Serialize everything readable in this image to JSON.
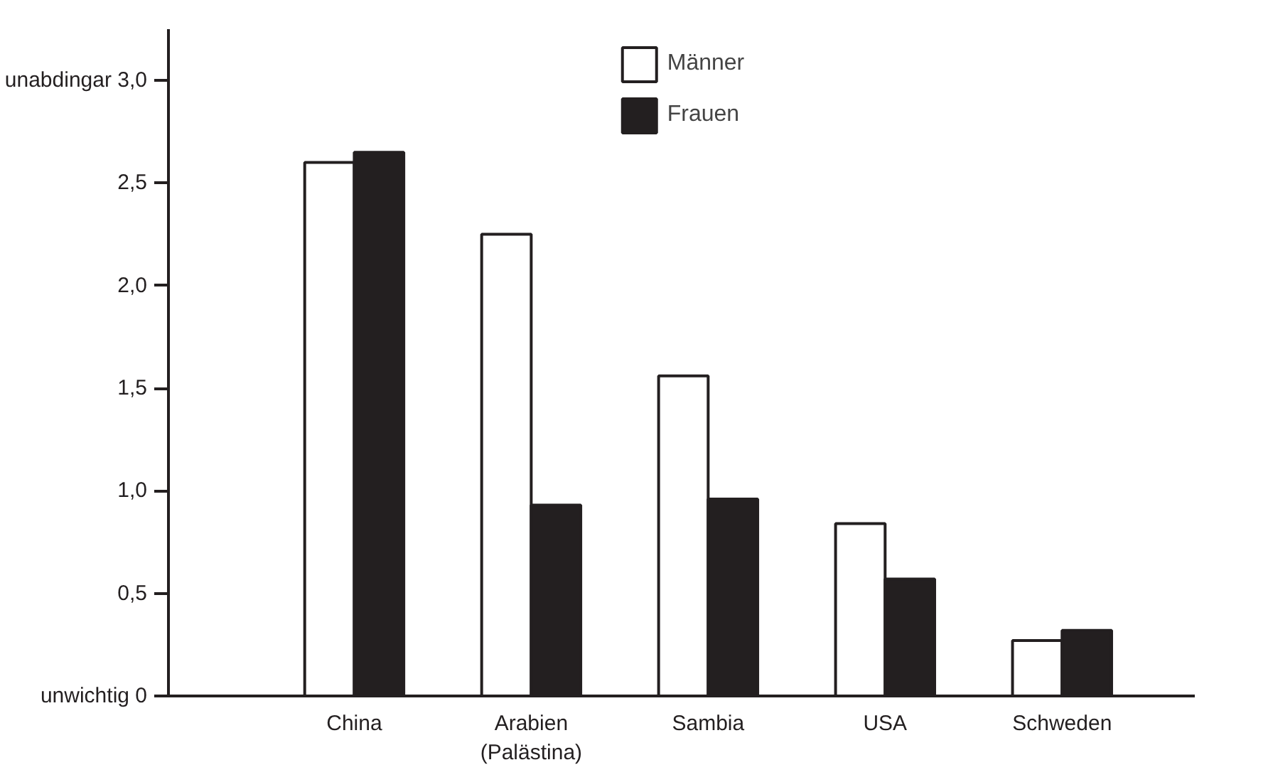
{
  "chart_data": {
    "type": "bar",
    "categories": [
      "China",
      "Arabien\n(Palästina)",
      "Sambia",
      "USA",
      "Schweden"
    ],
    "series": [
      {
        "name": "Männer",
        "color": "#ffffff",
        "values": [
          2.6,
          2.25,
          1.56,
          0.84,
          0.27
        ]
      },
      {
        "name": "Frauen",
        "color": "#231f20",
        "values": [
          2.65,
          0.93,
          0.96,
          0.57,
          0.32
        ]
      }
    ],
    "ylim": [
      0,
      3.25
    ],
    "yticks": [
      {
        "value": 0,
        "label": "unwichtig 0"
      },
      {
        "value": 0.5,
        "label": "0,5"
      },
      {
        "value": 1.0,
        "label": "1,0"
      },
      {
        "value": 1.5,
        "label": "1,5"
      },
      {
        "value": 2.0,
        "label": "2,0"
      },
      {
        "value": 2.5,
        "label": "2,5"
      },
      {
        "value": 3.0,
        "label": "unabdingar 3,0"
      }
    ],
    "grid": false,
    "legend": "top"
  }
}
